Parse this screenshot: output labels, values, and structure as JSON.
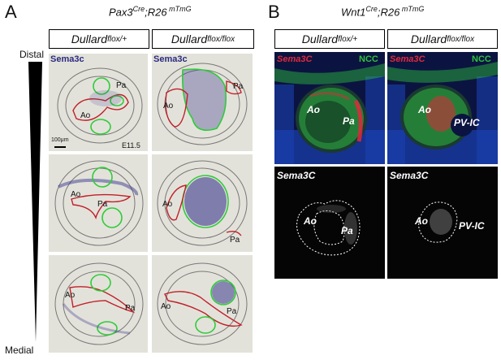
{
  "panel_a": {
    "letter": "A",
    "title_gene": "Pax3",
    "title_sup1": "Cre",
    "title_mid": ";R26",
    "title_sup2": " mTmG",
    "col1": {
      "base": "Dullard",
      "sup": "flox/+"
    },
    "col2": {
      "base": "Dullard",
      "sup": "flox/flox"
    },
    "axis_top": "Distal",
    "axis_bottom": "Medial",
    "stain_label": "Sema3c",
    "scale_bar": "100μm",
    "stage": "E11.5",
    "label_ao": "Ao",
    "label_pa": "Pa"
  },
  "panel_b": {
    "letter": "B",
    "title_gene": "Wnt1",
    "title_sup1": "Cre",
    "title_mid": ";R26",
    "title_sup2": " mTmG",
    "col1": {
      "base": "Dullard",
      "sup": "flox/+"
    },
    "col2": {
      "base": "Dullard",
      "sup": "flox/flox"
    },
    "top_label_red": "Sema3C",
    "top_label_green": "NCC",
    "bottom_label": "Sema3C",
    "label_ao": "Ao",
    "label_pa": "Pa",
    "label_pvic": "PV-IC"
  },
  "colors": {
    "ish_bg": "#e3e2da",
    "purple_stain": "#3c3a8e",
    "red_outline": "#c0202a",
    "green_outline": "#2ecc3a",
    "fl_red": "#e0283c",
    "fl_green": "#2fc13d",
    "fl_blue": "#1a3fb0"
  }
}
